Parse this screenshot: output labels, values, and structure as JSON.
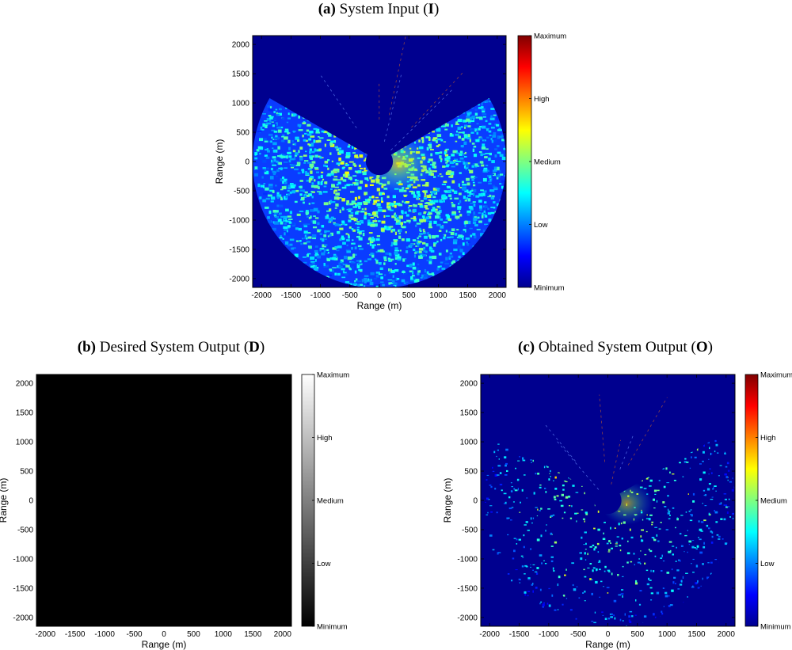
{
  "chart_data": [
    {
      "type": "heatmap",
      "panel_letter": "(a)",
      "title_text": " System Input (",
      "title_symbol": "I",
      "title_close": ")",
      "xlabel": "Range (m)",
      "ylabel": "Range (m)",
      "xlim": [
        -2150,
        2150
      ],
      "ylim": [
        -2150,
        2150
      ],
      "x_ticks": [
        -2000,
        -1500,
        -1000,
        -500,
        0,
        500,
        1000,
        1500,
        2000
      ],
      "y_ticks": [
        2000,
        1500,
        1000,
        500,
        0,
        -500,
        -1000,
        -1500,
        -2000
      ],
      "colormap": "jet",
      "background_color": "#00008f",
      "colorbar_labels": [
        "Maximum",
        "High",
        "Medium",
        "Low",
        "Minimum"
      ],
      "sector": {
        "outer_radius": 2150,
        "inner_radius": 230,
        "open_angle_from_north_deg": 60,
        "intensity": "dense"
      }
    },
    {
      "type": "heatmap",
      "panel_letter": "(b)",
      "title_text": " Desired System Output (",
      "title_symbol": "D",
      "title_close": ")",
      "xlabel": "Range (m)",
      "ylabel": "Range (m)",
      "xlim": [
        -2150,
        2150
      ],
      "ylim": [
        -2150,
        2150
      ],
      "x_ticks": [
        -2000,
        -1500,
        -1000,
        -500,
        0,
        500,
        1000,
        1500,
        2000
      ],
      "y_ticks": [
        2000,
        1500,
        1000,
        500,
        0,
        -500,
        -1000,
        -1500,
        -2000
      ],
      "colormap": "gray",
      "background_color": "#000000",
      "colorbar_labels": [
        "Maximum",
        "High",
        "Medium",
        "Low",
        "Minimum"
      ]
    },
    {
      "type": "heatmap",
      "panel_letter": "(c)",
      "title_text": " Obtained System Output (",
      "title_symbol": "O",
      "title_close": ")",
      "xlabel": "Range (m)",
      "ylabel": "Range (m)",
      "xlim": [
        -2150,
        2150
      ],
      "ylim": [
        -2150,
        2150
      ],
      "x_ticks": [
        -2000,
        -1500,
        -1000,
        -500,
        0,
        500,
        1000,
        1500,
        2000
      ],
      "y_ticks": [
        2000,
        1500,
        1000,
        500,
        0,
        -500,
        -1000,
        -1500,
        -2000
      ],
      "colormap": "jet",
      "background_color": "#00008f",
      "colorbar_labels": [
        "Maximum",
        "High",
        "Medium",
        "Low",
        "Minimum"
      ],
      "sector": {
        "outer_radius": 2150,
        "inner_radius": 230,
        "open_angle_from_north_deg": 60,
        "intensity": "sparse"
      }
    }
  ],
  "colors": {
    "jet_dark_blue": "#00008f",
    "jet_blue": "#0000ff",
    "jet_cyan": "#00ffff",
    "jet_yellow": "#ffff00",
    "jet_red": "#ff0000",
    "jet_dark_red": "#800000",
    "gray_black": "#000000",
    "gray_white": "#ffffff"
  }
}
